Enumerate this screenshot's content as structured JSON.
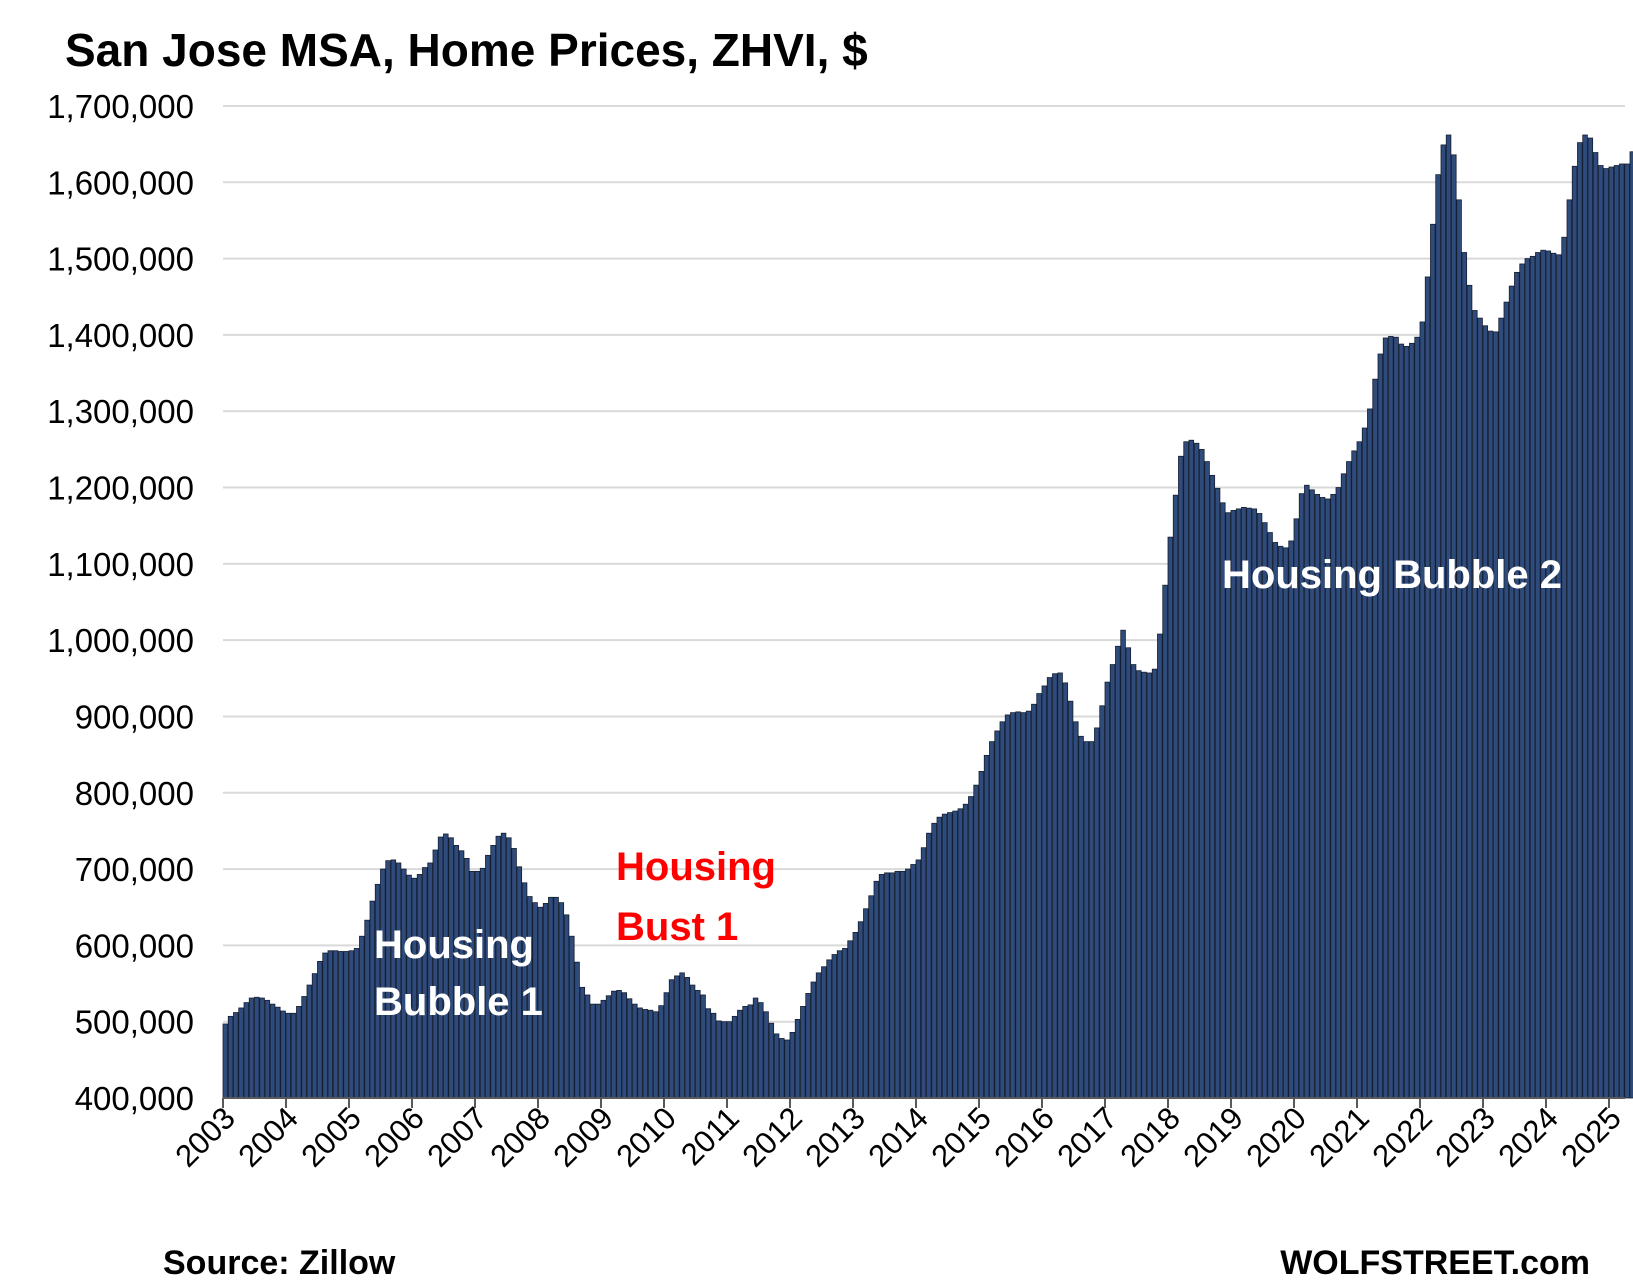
{
  "chart_data": {
    "type": "bar",
    "title": "San Jose MSA, Home Prices, ZHVI, $",
    "ylim": [
      400000,
      1700000
    ],
    "yticks": [
      "400,000",
      "500,000",
      "600,000",
      "700,000",
      "800,000",
      "900,000",
      "1,000,000",
      "1,100,000",
      "1,200,000",
      "1,300,000",
      "1,400,000",
      "1,500,000",
      "1,600,000",
      "1,700,000"
    ],
    "xticks": [
      "2003",
      "2004",
      "2005",
      "2006",
      "2007",
      "2008",
      "2009",
      "2010",
      "2011",
      "2012",
      "2013",
      "2014",
      "2015",
      "2016",
      "2017",
      "2018",
      "2019",
      "2020",
      "2021",
      "2022",
      "2023",
      "2024",
      "2025"
    ],
    "x_start": "2003-01",
    "frequency": "monthly",
    "grid": true,
    "colors": {
      "bar": "#2f4b7c",
      "bar_edge": "#141e30"
    },
    "annotations": [
      {
        "lines": [
          "Housing",
          "Bubble 1"
        ],
        "color": "#ffffff"
      },
      {
        "lines": [
          "Housing",
          "Bust 1"
        ],
        "color": "#ff0000"
      },
      {
        "lines": [
          "Housing Bubble 2"
        ],
        "color": "#ffffff"
      }
    ],
    "source": "Source: Zillow",
    "credit": "WOLFSTREET.com",
    "values": [
      497000,
      507000,
      512000,
      518000,
      525000,
      531000,
      532000,
      531000,
      528000,
      523000,
      519000,
      514000,
      511000,
      511000,
      520000,
      533000,
      548000,
      563000,
      579000,
      590000,
      593000,
      593000,
      592000,
      592000,
      593000,
      596000,
      612000,
      633000,
      658000,
      680000,
      700000,
      711000,
      712000,
      708000,
      700000,
      692000,
      688000,
      693000,
      702000,
      708000,
      725000,
      742000,
      746000,
      741000,
      731000,
      724000,
      714000,
      697000,
      697000,
      701000,
      718000,
      731000,
      743000,
      747000,
      741000,
      727000,
      703000,
      682000,
      664000,
      656000,
      650000,
      655000,
      663000,
      663000,
      656000,
      640000,
      612000,
      578000,
      545000,
      535000,
      523000,
      523000,
      528000,
      534000,
      540000,
      541000,
      538000,
      530000,
      523000,
      518000,
      516000,
      515000,
      513000,
      521000,
      538000,
      555000,
      560000,
      564000,
      558000,
      548000,
      541000,
      535000,
      517000,
      511000,
      501000,
      500000,
      500000,
      507000,
      515000,
      520000,
      522000,
      531000,
      525000,
      513000,
      498000,
      484000,
      478000,
      476000,
      486000,
      503000,
      520000,
      537000,
      552000,
      564000,
      572000,
      581000,
      588000,
      593000,
      596000,
      606000,
      617000,
      631000,
      648000,
      665000,
      684000,
      693000,
      695000,
      695000,
      697000,
      697000,
      700000,
      706000,
      712000,
      728000,
      747000,
      760000,
      768000,
      772000,
      774000,
      776000,
      779000,
      785000,
      795000,
      810000,
      828000,
      849000,
      867000,
      881000,
      893000,
      902000,
      905000,
      906000,
      905000,
      907000,
      916000,
      930000,
      940000,
      951000,
      956000,
      957000,
      944000,
      920000,
      893000,
      874000,
      867000,
      867000,
      885000,
      914000,
      945000,
      968000,
      992000,
      1013000,
      990000,
      968000,
      960000,
      958000,
      957000,
      962000,
      1008000,
      1072000,
      1135000,
      1190000,
      1241000,
      1260000,
      1262000,
      1258000,
      1250000,
      1234000,
      1216000,
      1199000,
      1180000,
      1167000,
      1170000,
      1172000,
      1174000,
      1173000,
      1172000,
      1166000,
      1154000,
      1141000,
      1128000,
      1123000,
      1121000,
      1130000,
      1159000,
      1192000,
      1203000,
      1197000,
      1191000,
      1187000,
      1185000,
      1191000,
      1200000,
      1218000,
      1234000,
      1248000,
      1260000,
      1278000,
      1303000,
      1342000,
      1375000,
      1396000,
      1398000,
      1397000,
      1388000,
      1385000,
      1389000,
      1397000,
      1417000,
      1476000,
      1545000,
      1610000,
      1649000,
      1662000,
      1636000,
      1577000,
      1508000,
      1465000,
      1432000,
      1422000,
      1412000,
      1405000,
      1404000,
      1422000,
      1443000,
      1464000,
      1482000,
      1493000,
      1500000,
      1503000,
      1508000,
      1511000,
      1510000,
      1507000,
      1505000,
      1528000,
      1577000,
      1621000,
      1652000,
      1662000,
      1658000,
      1639000,
      1622000,
      1618000,
      1620000,
      1622000,
      1624000,
      1624000,
      1640000,
      1662000,
      1678000
    ]
  }
}
